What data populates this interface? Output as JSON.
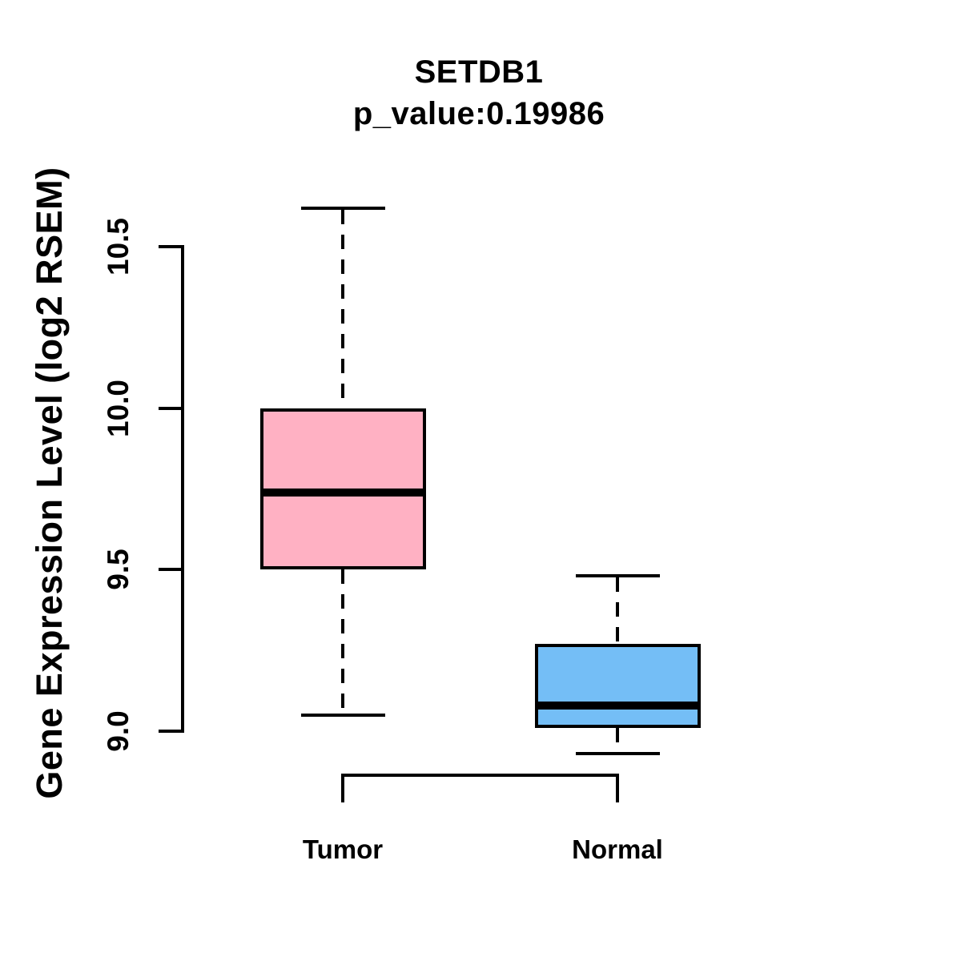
{
  "chart_data": {
    "type": "boxplot",
    "title": "SETDB1",
    "subtitle": "p_value:0.19986",
    "ylabel": "Gene Expression Level (log2 RSEM)",
    "xlabel": "",
    "categories": [
      "Tumor",
      "Normal"
    ],
    "yaxis": {
      "ticks": [
        9.0,
        9.5,
        10.0,
        10.5
      ],
      "labels": [
        "9.0",
        "9.5",
        "10.0",
        "10.5"
      ],
      "range_shown": [
        8.8,
        10.72
      ]
    },
    "series": [
      {
        "name": "Tumor",
        "fill_color": "#FFB1C3",
        "box": {
          "whisker_low": 9.05,
          "q1": 9.5,
          "median": 9.74,
          "q3": 10.0,
          "whisker_high": 10.62
        }
      },
      {
        "name": "Normal",
        "fill_color": "#74BEF6",
        "box": {
          "whisker_low": 8.93,
          "q1": 9.01,
          "median": 9.08,
          "q3": 9.27,
          "whisker_high": 9.48
        }
      }
    ],
    "style": {
      "whisker_line_style": "dashed",
      "line_color": "#000000",
      "median_color": "#000000",
      "background": "#FFFFFF",
      "grid": false,
      "legend": "none"
    },
    "annotations": {
      "comparison_bracket_between": [
        "Tumor",
        "Normal"
      ]
    }
  }
}
